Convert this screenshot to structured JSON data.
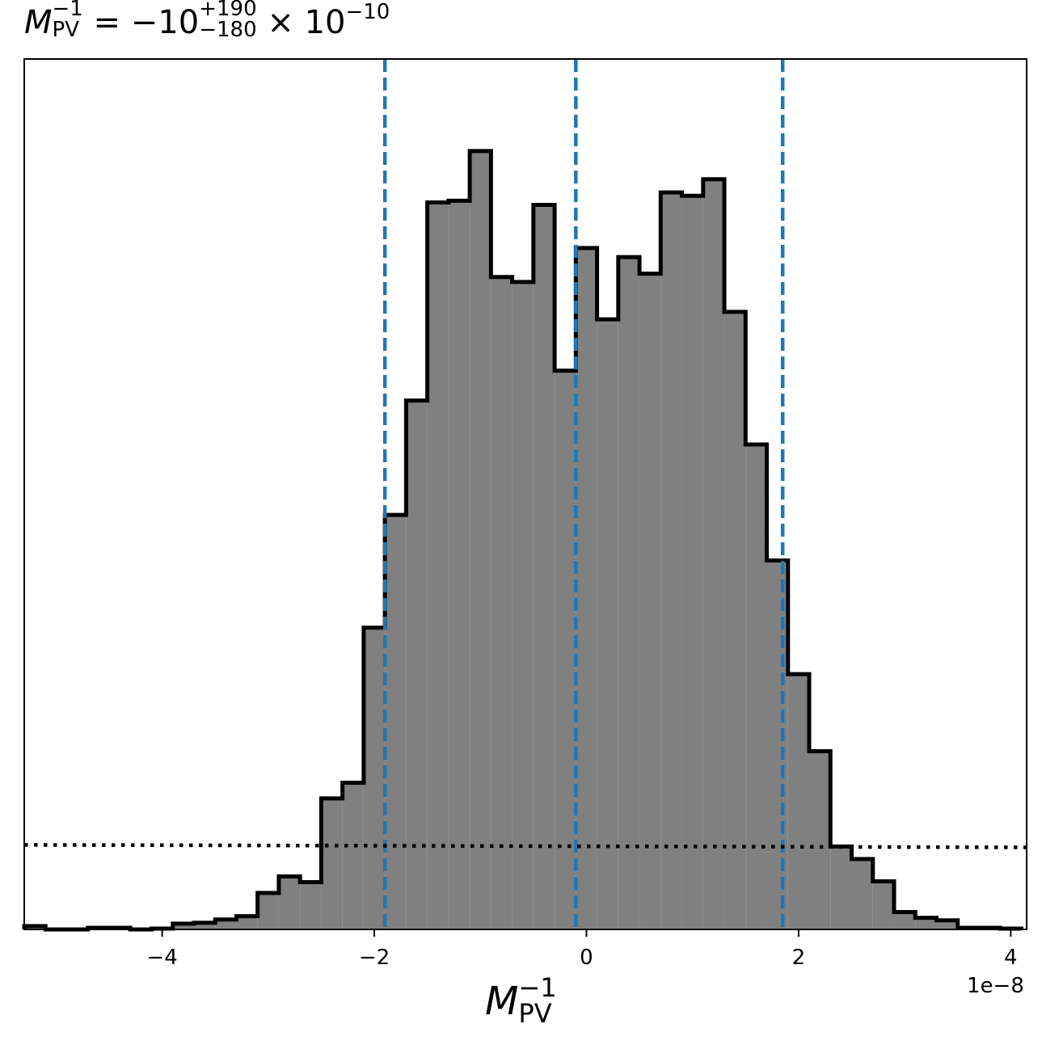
{
  "title": {
    "symbol": "M",
    "sup": "−1",
    "sub": "PV",
    "equals": " = −10",
    "plus_err": "+190",
    "minus_err": "−180",
    "times": " × 10",
    "exponent": "−10"
  },
  "xlabel": {
    "symbol": "M",
    "sup": "−1",
    "sub": "PV"
  },
  "offset_text": "1e−8",
  "chart_data": {
    "type": "histogram",
    "title": "M_PV^-1 = -10 (+190/-180) × 10^-10",
    "xlabel": "M_PV^-1",
    "x_scale_offset": "1e-8",
    "xlim": [
      -5.3,
      4.15
    ],
    "ylim": [
      0,
      1.05
    ],
    "x_ticks": [
      -4,
      -2,
      0,
      2,
      4
    ],
    "x_tick_labels": [
      "−4",
      "−2",
      "0",
      "2",
      "4"
    ],
    "y_ticks_shown": false,
    "fill_color": "#808080",
    "edge_color": "#000000",
    "bin_edges": [
      -5.3,
      -5.1,
      -4.9,
      -4.7,
      -4.5,
      -4.3,
      -4.1,
      -3.9,
      -3.7,
      -3.5,
      -3.3,
      -3.1,
      -2.9,
      -2.7,
      -2.5,
      -2.3,
      -2.1,
      -1.9,
      -1.7,
      -1.5,
      -1.3,
      -1.1,
      -0.9,
      -0.7,
      -0.5,
      -0.3,
      -0.1,
      0.1,
      0.3,
      0.5,
      0.7,
      0.9,
      1.1,
      1.3,
      1.5,
      1.7,
      1.9,
      2.1,
      2.3,
      2.5,
      2.7,
      2.9,
      3.1,
      3.3,
      3.5,
      3.7,
      3.9,
      4.1
    ],
    "counts": [
      0.004,
      0.0,
      0.0,
      0.002,
      0.002,
      0.0,
      0.001,
      0.007,
      0.008,
      0.012,
      0.016,
      0.044,
      0.064,
      0.057,
      0.158,
      0.177,
      0.364,
      0.5,
      0.638,
      0.877,
      0.879,
      0.939,
      0.787,
      0.781,
      0.874,
      0.674,
      0.822,
      0.736,
      0.811,
      0.791,
      0.889,
      0.885,
      0.905,
      0.745,
      0.585,
      0.445,
      0.308,
      0.215,
      0.1,
      0.085,
      0.058,
      0.021,
      0.014,
      0.011,
      0.002,
      0.002,
      0.001
    ],
    "vlines": [
      {
        "x": -1.9,
        "color": "#1f77b4",
        "style": "dashed"
      },
      {
        "x": -0.1,
        "color": "#1f77b4",
        "style": "dashed"
      },
      {
        "x": 1.85,
        "color": "#1f77b4",
        "style": "dashed"
      }
    ],
    "hline": {
      "y_start": 0.102,
      "y_end": 0.099,
      "color": "#000000",
      "style": "dotted"
    }
  }
}
